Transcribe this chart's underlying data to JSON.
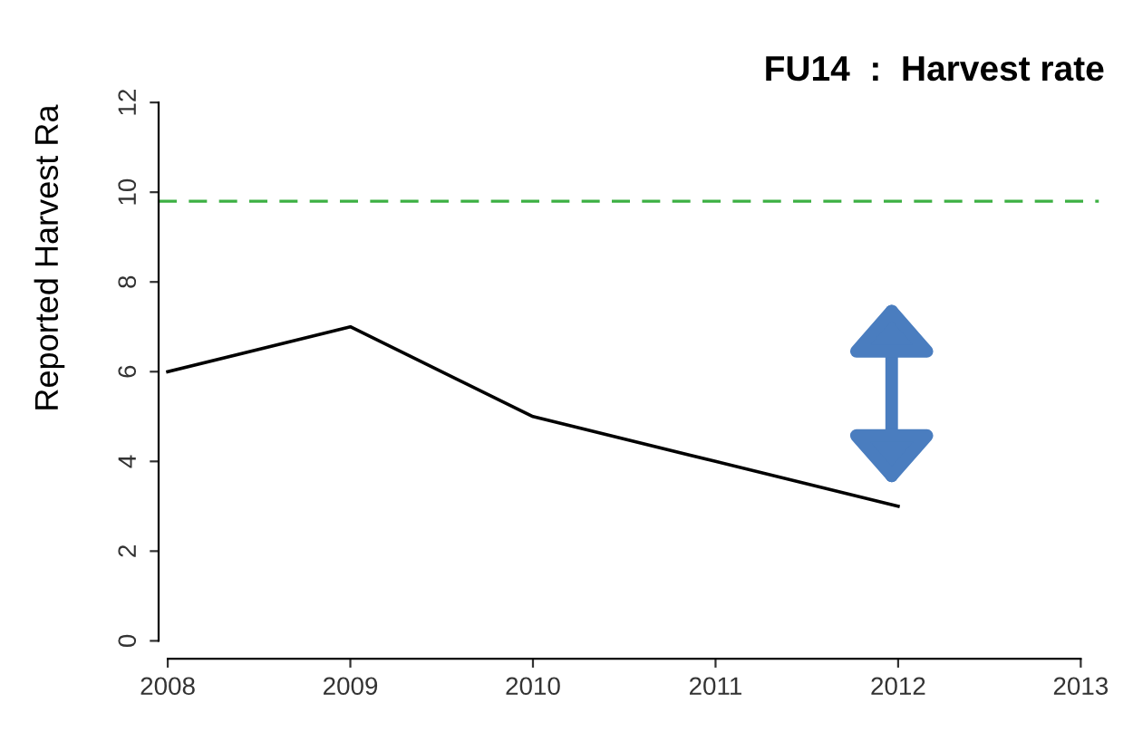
{
  "chart_data": {
    "type": "line",
    "title": "FU14  :  Harvest rate",
    "ylabel": "Reported Harvest Ra",
    "x": [
      2008,
      2009,
      2010,
      2011,
      2012
    ],
    "series": [
      {
        "color": "#000000",
        "values": [
          6,
          7,
          5,
          4,
          3
        ]
      }
    ],
    "xlim": [
      2007.95,
      2013.1
    ],
    "ylim": [
      -0.4,
      12
    ],
    "xticks": [
      2008,
      2009,
      2010,
      2011,
      2012,
      2013
    ],
    "yticks": [
      0,
      2,
      4,
      6,
      8,
      10,
      12
    ],
    "ref_lines": [
      {
        "axis": "y",
        "value": 9.8,
        "color": "#3cb043",
        "line_style": "dashed"
      }
    ],
    "grid": false,
    "marker": "none",
    "line_style": "solid"
  }
}
